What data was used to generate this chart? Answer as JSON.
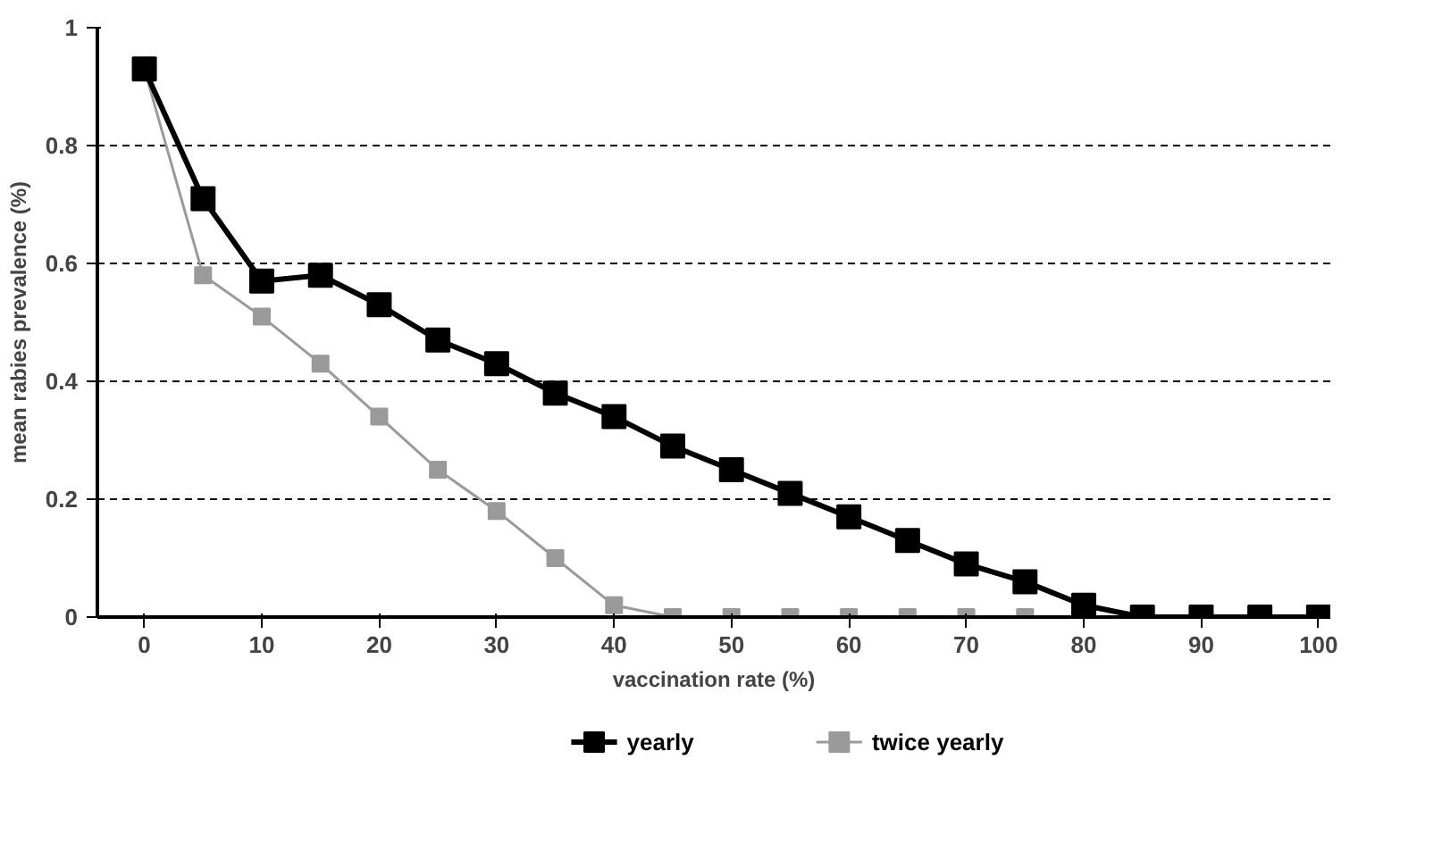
{
  "chart_data": {
    "type": "line",
    "xlabel": "vaccination rate (%)",
    "ylabel": "mean rabies prevalence (%)",
    "x": [
      0,
      5,
      10,
      15,
      20,
      25,
      30,
      35,
      40,
      45,
      50,
      55,
      60,
      65,
      70,
      75,
      80,
      85,
      90,
      95,
      100
    ],
    "series": [
      {
        "name": "yearly",
        "color": "#000000",
        "values": [
          0.93,
          0.71,
          0.57,
          0.58,
          0.53,
          0.47,
          0.43,
          0.38,
          0.34,
          0.29,
          0.25,
          0.21,
          0.17,
          0.13,
          0.09,
          0.06,
          0.02,
          0,
          0,
          0,
          0
        ]
      },
      {
        "name": "twice yearly",
        "color": "#9a9a9a",
        "values": [
          0.93,
          0.58,
          0.51,
          0.43,
          0.34,
          0.25,
          0.18,
          0.1,
          0.02,
          0,
          0,
          0,
          0,
          0,
          0,
          0,
          0,
          0,
          0,
          0,
          0
        ]
      }
    ],
    "xlim": [
      -4,
      101
    ],
    "ylim": [
      0,
      1
    ],
    "xticks": [
      0,
      10,
      20,
      30,
      40,
      50,
      60,
      70,
      80,
      90,
      100
    ],
    "yticks": [
      0,
      0.2,
      0.4,
      0.6,
      0.8,
      1
    ],
    "grid": "y",
    "legend": "bottom",
    "marker": "square",
    "line_style": "solid"
  }
}
